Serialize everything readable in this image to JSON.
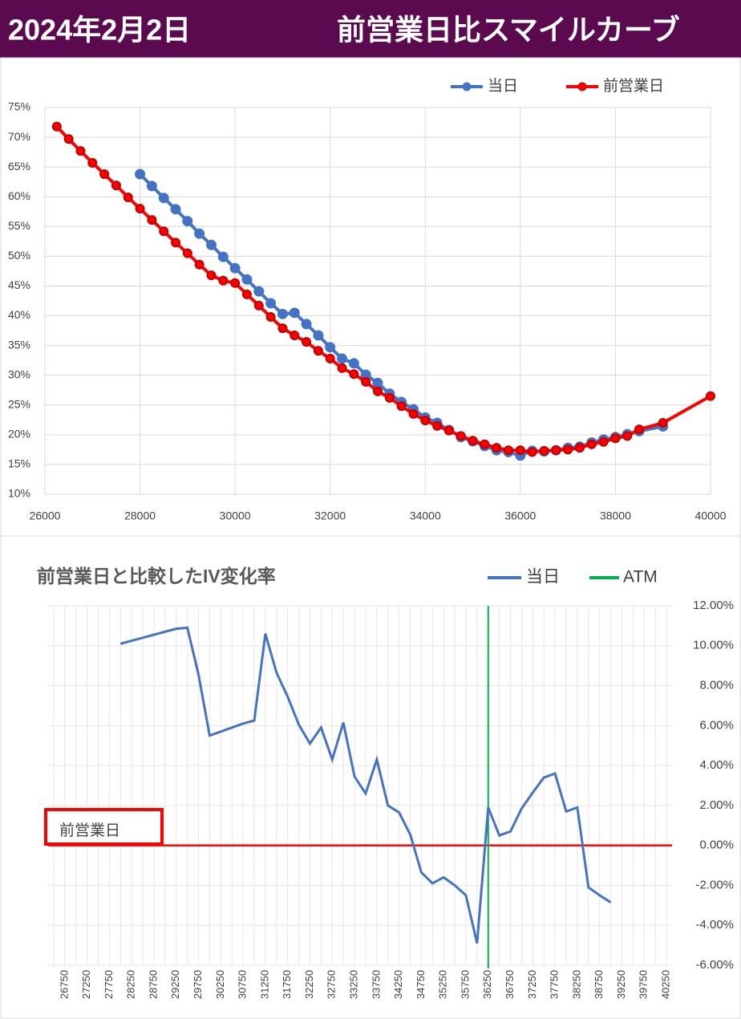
{
  "header": {
    "date": "2024年2月2日",
    "title": "前営業日比スマイルカーブ"
  },
  "chart_data": [
    {
      "type": "line",
      "x": [
        26250,
        26500,
        26750,
        27000,
        27250,
        27500,
        27750,
        28000,
        28250,
        28500,
        28750,
        29000,
        29250,
        29500,
        29750,
        30000,
        30250,
        30500,
        30750,
        31000,
        31250,
        31500,
        31750,
        32000,
        32250,
        32500,
        32750,
        33000,
        33250,
        33500,
        33750,
        34000,
        34250,
        34500,
        34750,
        35000,
        35250,
        35500,
        35750,
        36000,
        36250,
        36500,
        36750,
        37000,
        37250,
        37500,
        37750,
        38000,
        38250,
        38500,
        39000,
        40000
      ],
      "series": [
        {
          "name": "当日",
          "color": "#4472c4",
          "values": [
            null,
            null,
            null,
            null,
            null,
            null,
            null,
            63.8,
            61.8,
            59.8,
            57.9,
            55.9,
            53.8,
            51.9,
            49.9,
            48.0,
            46.1,
            44.1,
            42.1,
            40.3,
            40.5,
            38.6,
            36.7,
            34.7,
            32.8,
            32.0,
            30.1,
            28.7,
            26.9,
            25.5,
            24.3,
            22.9,
            22.0,
            20.8,
            19.6,
            18.9,
            18.1,
            17.4,
            17.1,
            16.5,
            17.3,
            17.2,
            17.4,
            17.8,
            18.0,
            18.7,
            19.2,
            19.6,
            20.1,
            20.6,
            21.4,
            null
          ]
        },
        {
          "name": "前営業日",
          "color": "#ff0000",
          "values": [
            71.8,
            69.7,
            67.7,
            65.7,
            63.8,
            61.9,
            59.9,
            58.0,
            56.1,
            54.2,
            52.3,
            50.5,
            48.6,
            46.8,
            45.9,
            45.5,
            43.6,
            41.7,
            39.8,
            37.9,
            36.7,
            35.6,
            34.1,
            32.8,
            31.2,
            30.2,
            28.9,
            27.3,
            26.2,
            24.8,
            23.5,
            22.4,
            21.5,
            20.7,
            19.8,
            19.0,
            18.4,
            17.8,
            17.4,
            17.4,
            17.1,
            17.3,
            17.4,
            17.5,
            17.8,
            18.4,
            18.8,
            19.4,
            19.8,
            20.9,
            22.0,
            26.5
          ]
        }
      ],
      "xlim": [
        26000,
        40000
      ],
      "xticks": [
        26000,
        28000,
        30000,
        32000,
        34000,
        36000,
        38000,
        40000
      ],
      "ylim": [
        10,
        75
      ],
      "yticks": [
        {
          "value": 10,
          "label": "10%"
        },
        {
          "value": 15,
          "label": "15%"
        },
        {
          "value": 20,
          "label": "20%"
        },
        {
          "value": 25,
          "label": "25%"
        },
        {
          "value": 30,
          "label": "30%"
        },
        {
          "value": 35,
          "label": "35%"
        },
        {
          "value": 40,
          "label": "40%"
        },
        {
          "value": 45,
          "label": "45%"
        },
        {
          "value": 50,
          "label": "50%"
        },
        {
          "value": 55,
          "label": "55%"
        },
        {
          "value": 60,
          "label": "60%"
        },
        {
          "value": 65,
          "label": "65%"
        },
        {
          "value": 70,
          "label": "70%"
        },
        {
          "value": 75,
          "label": "75%"
        }
      ],
      "grid": true,
      "legend": "top-right"
    },
    {
      "type": "line",
      "title": "前営業日と比較したIV変化率",
      "categories": [
        null,
        "26750",
        null,
        "27250",
        null,
        "27750",
        null,
        "28250",
        null,
        "28750",
        null,
        "29250",
        null,
        "29750",
        null,
        "30250",
        null,
        "30750",
        null,
        "31250",
        null,
        "31750",
        null,
        "32250",
        null,
        "32750",
        null,
        "33250",
        null,
        "33750",
        null,
        "34250",
        null,
        "34750",
        null,
        "35250",
        null,
        "35750",
        null,
        "36250",
        null,
        "36750",
        null,
        "37250",
        null,
        "37750",
        null,
        "38250",
        null,
        "38750",
        null,
        "39250",
        null,
        "39750",
        null,
        "40250"
      ],
      "series": [
        {
          "name": "当日",
          "color": "#4472c4",
          "axis": "y2",
          "values": [
            null,
            null,
            null,
            null,
            null,
            null,
            10.1,
            10.25,
            10.4,
            10.55,
            10.7,
            10.85,
            10.9,
            8.55,
            5.5,
            5.7,
            5.9,
            6.1,
            6.25,
            10.6,
            8.65,
            7.45,
            6.05,
            5.1,
            5.9,
            4.3,
            6.15,
            3.45,
            2.6,
            4.3,
            2.0,
            1.65,
            0.55,
            -1.35,
            -1.9,
            -1.6,
            -2.0,
            -2.5,
            -4.9,
            1.9,
            0.5,
            0.7,
            1.85,
            2.65,
            3.4,
            3.6,
            1.7,
            1.9,
            -2.1,
            -2.5,
            -2.85,
            null,
            null,
            null,
            null,
            null
          ]
        }
      ],
      "atm": {
        "name": "ATM",
        "color": "#00b050",
        "category": "36250"
      },
      "baseline": {
        "label": "前営業日",
        "value": 0,
        "color": "#ff0000"
      },
      "y2lim": [
        -6,
        12
      ],
      "y2ticks": [
        {
          "value": 12,
          "label": "12.00%"
        },
        {
          "value": 10,
          "label": "10.00%"
        },
        {
          "value": 8,
          "label": "8.00%"
        },
        {
          "value": 6,
          "label": "6.00%"
        },
        {
          "value": 4,
          "label": "4.00%"
        },
        {
          "value": 2,
          "label": "2.00%"
        },
        {
          "value": 0,
          "label": "0.00%"
        },
        {
          "value": -2,
          "label": "-2.00%"
        },
        {
          "value": -4,
          "label": "-4.00%"
        },
        {
          "value": -6,
          "label": "-6.00%"
        }
      ],
      "grid": true,
      "legend": "top-right"
    }
  ]
}
